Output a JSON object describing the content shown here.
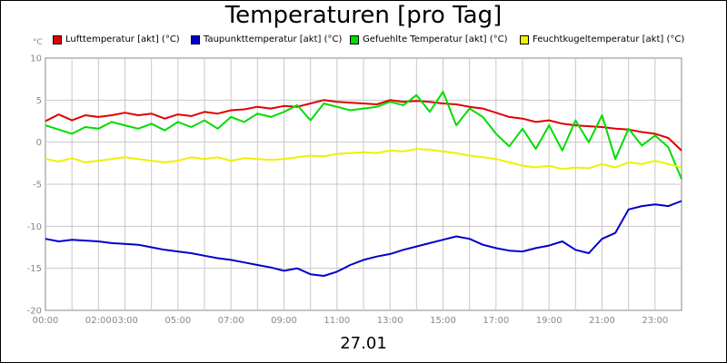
{
  "chart_data": {
    "type": "line",
    "title": "Temperaturen [pro Tag]",
    "unit": "°C",
    "date_label": "27.01",
    "ylim": [
      -20,
      10
    ],
    "y_ticks": [
      "10",
      "5",
      "0",
      "-5",
      "-10",
      "-15",
      "-20"
    ],
    "x_ticks": [
      "00:00",
      "02:00",
      "03:00",
      "05:00",
      "07:00",
      "09:00",
      "11:00",
      "13:00",
      "15:00",
      "17:00",
      "19:00",
      "21:00",
      "23:00"
    ],
    "xlim_hours": [
      0,
      24
    ],
    "grid": true,
    "legend_position": "top",
    "series": [
      {
        "name": "Lufttemperatur [akt] (°C)",
        "color": "#e00000",
        "x": [
          0,
          0.5,
          1,
          1.5,
          2,
          2.5,
          3,
          3.5,
          4,
          4.5,
          5,
          5.5,
          6,
          6.5,
          7,
          7.5,
          8,
          8.5,
          9,
          9.5,
          10,
          10.5,
          11,
          11.5,
          12,
          12.5,
          13,
          13.5,
          14,
          14.5,
          15,
          15.5,
          16,
          16.5,
          17,
          17.5,
          18,
          18.5,
          19,
          19.5,
          20,
          20.5,
          21,
          21.5,
          22,
          22.5,
          23,
          23.5,
          24
        ],
        "y": [
          2.5,
          3.3,
          2.6,
          3.2,
          3.0,
          3.2,
          3.5,
          3.2,
          3.4,
          2.8,
          3.3,
          3.1,
          3.6,
          3.4,
          3.8,
          3.9,
          4.2,
          4.0,
          4.3,
          4.2,
          4.6,
          5.0,
          4.8,
          4.7,
          4.6,
          4.5,
          5.0,
          4.8,
          4.9,
          4.8,
          4.6,
          4.5,
          4.2,
          4.0,
          3.5,
          3.0,
          2.8,
          2.4,
          2.6,
          2.2,
          2.0,
          1.9,
          1.8,
          1.6,
          1.5,
          1.2,
          1.0,
          0.5,
          -1.0
        ]
      },
      {
        "name": "Taupunkttemperatur [akt] (°C)",
        "color": "#0000cc",
        "x": [
          0,
          0.5,
          1,
          1.5,
          2,
          2.5,
          3,
          3.5,
          4,
          4.5,
          5,
          5.5,
          6,
          6.5,
          7,
          7.5,
          8,
          8.5,
          9,
          9.5,
          10,
          10.5,
          11,
          11.5,
          12,
          12.5,
          13,
          13.5,
          14,
          14.5,
          15,
          15.5,
          16,
          16.5,
          17,
          17.5,
          18,
          18.5,
          19,
          19.5,
          20,
          20.5,
          21,
          21.5,
          22,
          22.5,
          23,
          23.5,
          24
        ],
        "y": [
          -11.5,
          -11.8,
          -11.6,
          -11.7,
          -11.8,
          -12.0,
          -12.1,
          -12.2,
          -12.5,
          -12.8,
          -13.0,
          -13.2,
          -13.5,
          -13.8,
          -14.0,
          -14.3,
          -14.6,
          -14.9,
          -15.3,
          -15.0,
          -15.7,
          -15.9,
          -15.4,
          -14.6,
          -14.0,
          -13.6,
          -13.3,
          -12.8,
          -12.4,
          -12.0,
          -11.6,
          -11.2,
          -11.5,
          -12.2,
          -12.6,
          -12.9,
          -13.0,
          -12.6,
          -12.3,
          -11.8,
          -12.8,
          -13.2,
          -11.5,
          -10.8,
          -8.0,
          -7.6,
          -7.4,
          -7.6,
          -7.0
        ]
      },
      {
        "name": "Gefuehlte Temperatur [akt] (°C)",
        "color": "#00dd00",
        "x": [
          0,
          0.5,
          1,
          1.5,
          2,
          2.5,
          3,
          3.5,
          4,
          4.5,
          5,
          5.5,
          6,
          6.5,
          7,
          7.5,
          8,
          8.5,
          9,
          9.5,
          10,
          10.5,
          11,
          11.5,
          12,
          12.5,
          13,
          13.5,
          14,
          14.5,
          15,
          15.5,
          16,
          16.5,
          17,
          17.5,
          18,
          18.5,
          19,
          19.5,
          20,
          20.5,
          21,
          21.5,
          22,
          22.5,
          23,
          23.5,
          24
        ],
        "y": [
          2.0,
          1.5,
          1.0,
          1.8,
          1.6,
          2.4,
          2.0,
          1.6,
          2.2,
          1.4,
          2.4,
          1.8,
          2.6,
          1.6,
          3.0,
          2.4,
          3.4,
          3.0,
          3.6,
          4.4,
          2.6,
          4.6,
          4.2,
          3.8,
          4.0,
          4.2,
          4.8,
          4.4,
          5.6,
          3.6,
          6.0,
          2.0,
          4.0,
          3.0,
          1.0,
          -0.5,
          1.6,
          -0.8,
          2.0,
          -1.0,
          2.6,
          0.0,
          3.2,
          -2.0,
          1.6,
          -0.4,
          0.8,
          -0.6,
          -4.4
        ]
      },
      {
        "name": "Feuchtkugeltemperatur [akt] (°C)",
        "color": "#f0f000",
        "x": [
          0,
          0.5,
          1,
          1.5,
          2,
          2.5,
          3,
          3.5,
          4,
          4.5,
          5,
          5.5,
          6,
          6.5,
          7,
          7.5,
          8,
          8.5,
          9,
          9.5,
          10,
          10.5,
          11,
          11.5,
          12,
          12.5,
          13,
          13.5,
          14,
          14.5,
          15,
          15.5,
          16,
          16.5,
          17,
          17.5,
          18,
          18.5,
          19,
          19.5,
          20,
          20.5,
          21,
          21.5,
          22,
          22.5,
          23,
          23.5,
          24
        ],
        "y": [
          -2.0,
          -2.3,
          -1.9,
          -2.4,
          -2.2,
          -2.0,
          -1.8,
          -2.0,
          -2.2,
          -2.4,
          -2.2,
          -1.8,
          -2.0,
          -1.8,
          -2.2,
          -1.9,
          -2.0,
          -2.1,
          -2.0,
          -1.8,
          -1.6,
          -1.7,
          -1.4,
          -1.3,
          -1.2,
          -1.3,
          -1.0,
          -1.1,
          -0.8,
          -0.9,
          -1.1,
          -1.3,
          -1.6,
          -1.8,
          -2.0,
          -2.4,
          -2.8,
          -3.0,
          -2.8,
          -3.2,
          -3.0,
          -3.1,
          -2.6,
          -3.0,
          -2.4,
          -2.6,
          -2.2,
          -2.6,
          -3.0
        ]
      }
    ]
  }
}
